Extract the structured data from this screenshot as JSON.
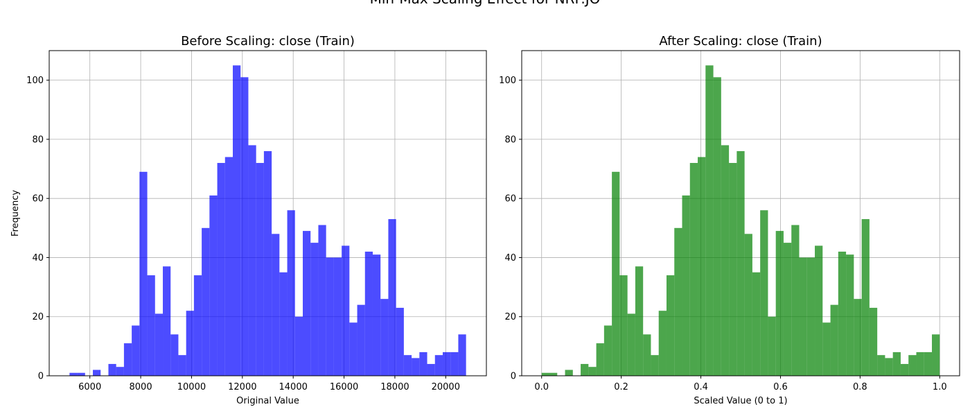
{
  "suptitle": "Min-Max Scaling Effect for NRP.JO",
  "colors": {
    "before": "#0000ff",
    "after": "#008000",
    "grid": "#b0b0b0"
  },
  "chart_data": [
    {
      "type": "bar",
      "title": "Before Scaling: close (Train)",
      "xlabel": "Original Value",
      "ylabel": "Frequency",
      "xlim": [
        4400,
        21600
      ],
      "ylim": [
        0,
        110
      ],
      "xticks": [
        "6000",
        "8000",
        "10000",
        "12000",
        "14000",
        "16000",
        "18000",
        "20000"
      ],
      "yticks": [
        "0",
        "20",
        "40",
        "60",
        "80",
        "100"
      ],
      "grid": true,
      "color": "#0000ff",
      "bin_start": 5200,
      "bin_end": 20800,
      "values": [
        1,
        1,
        0,
        2,
        0,
        4,
        3,
        11,
        17,
        69,
        34,
        21,
        37,
        14,
        7,
        22,
        34,
        50,
        61,
        72,
        74,
        105,
        101,
        78,
        72,
        76,
        48,
        35,
        56,
        20,
        49,
        45,
        51,
        40,
        40,
        44,
        18,
        24,
        42,
        41,
        26,
        53,
        23,
        7,
        6,
        8,
        4,
        7,
        8,
        8,
        14
      ]
    },
    {
      "type": "bar",
      "title": "After Scaling: close (Train)",
      "xlabel": "Scaled Value (0 to 1)",
      "ylabel": "",
      "xlim": [
        -0.05,
        1.05
      ],
      "ylim": [
        0,
        110
      ],
      "xticks": [
        "0.0",
        "0.2",
        "0.4",
        "0.6",
        "0.8",
        "1.0"
      ],
      "yticks": [
        "0",
        "20",
        "40",
        "60",
        "80",
        "100"
      ],
      "grid": true,
      "color": "#008000",
      "bin_start": 0,
      "bin_end": 1,
      "values": [
        1,
        1,
        0,
        2,
        0,
        4,
        3,
        11,
        17,
        69,
        34,
        21,
        37,
        14,
        7,
        22,
        34,
        50,
        61,
        72,
        74,
        105,
        101,
        78,
        72,
        76,
        48,
        35,
        56,
        20,
        49,
        45,
        51,
        40,
        40,
        44,
        18,
        24,
        42,
        41,
        26,
        53,
        23,
        7,
        6,
        8,
        4,
        7,
        8,
        8,
        14
      ]
    }
  ]
}
